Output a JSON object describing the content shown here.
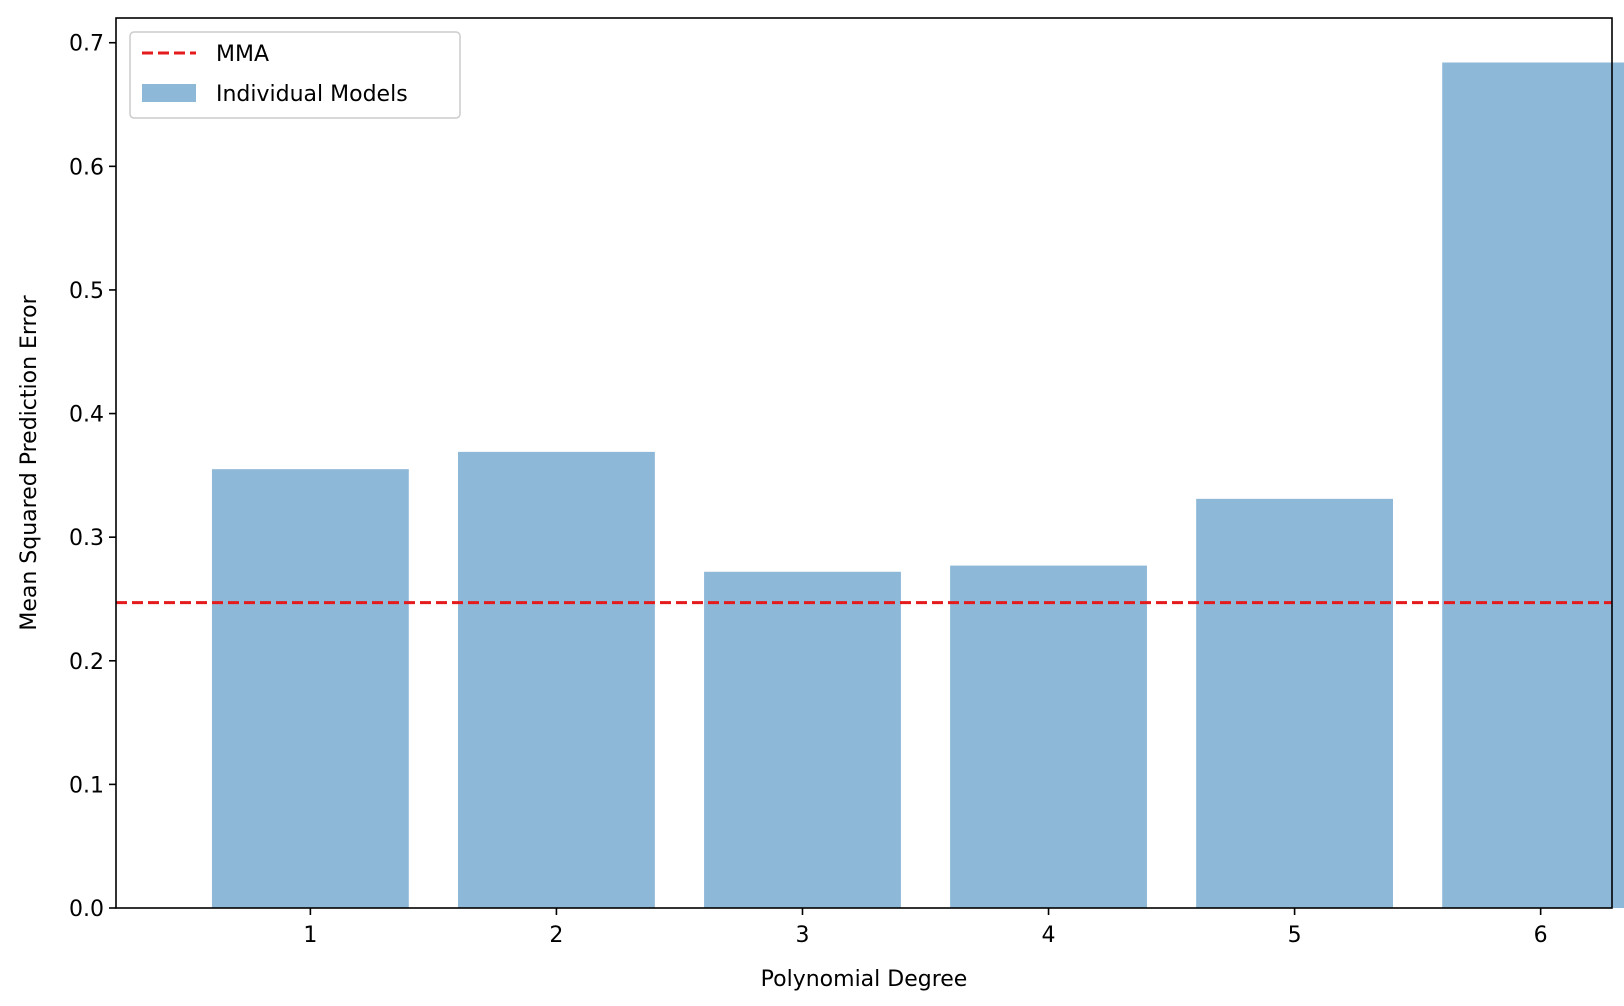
{
  "chart_data": {
    "type": "bar",
    "title": "",
    "xlabel": "Polynomial Degree",
    "ylabel": "Mean Squared Prediction Error",
    "categories": [
      "1",
      "2",
      "3",
      "4",
      "5",
      "6"
    ],
    "series": [
      {
        "name": "Individual Models",
        "values": [
          0.355,
          0.369,
          0.272,
          0.277,
          0.331,
          0.684
        ],
        "color": "#8eb8d8"
      }
    ],
    "reference_lines": [
      {
        "name": "MMA",
        "y": 0.247,
        "color": "#e41a1c",
        "style": "dashed"
      }
    ],
    "ylim": [
      0,
      0.72
    ],
    "yticks": [
      "0.0",
      "0.1",
      "0.2",
      "0.3",
      "0.4",
      "0.5",
      "0.6",
      "0.7"
    ],
    "legend": {
      "position": "top-left",
      "entries": [
        {
          "label": "MMA",
          "marker": "dashed-line"
        },
        {
          "label": "Individual Models",
          "marker": "patch"
        }
      ]
    },
    "grid": false
  }
}
